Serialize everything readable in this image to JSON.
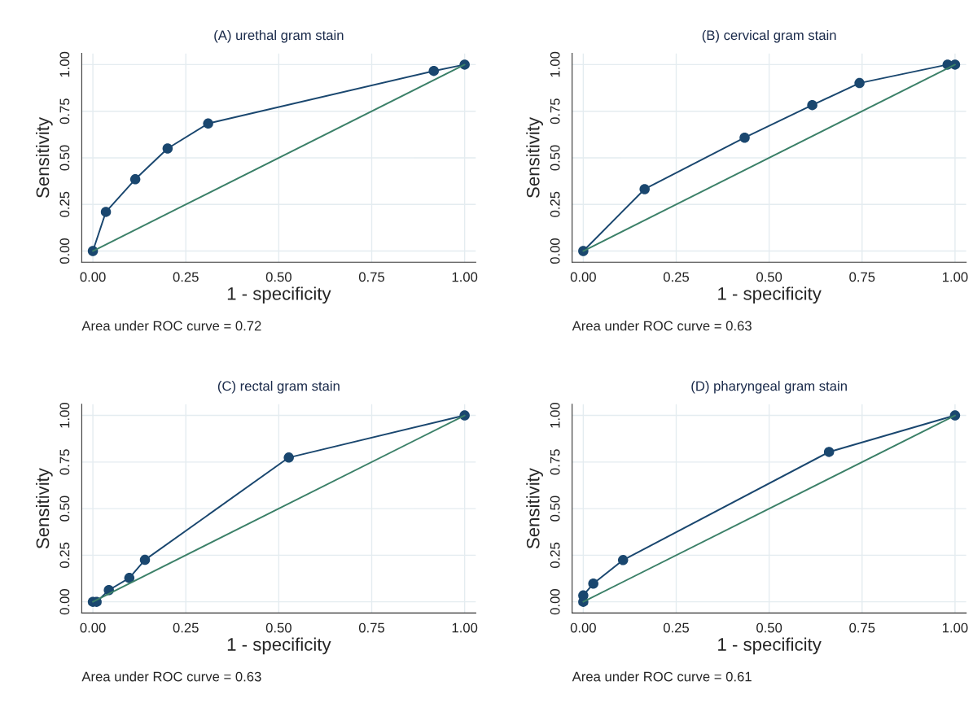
{
  "chart_data": [
    {
      "type": "line",
      "title": "(A) urethal gram stain",
      "xlabel": "1 - specificity",
      "ylabel": "Sensitivity",
      "annotations": [
        "Area under ROC curve = 0.72"
      ],
      "xlim": [
        -0.03,
        1.03
      ],
      "ylim": [
        -0.06,
        1.06
      ],
      "xticks": [
        {
          "value": 0,
          "label": "0.00"
        },
        {
          "value": 0.25,
          "label": "0.25"
        },
        {
          "value": 0.5,
          "label": "0.50"
        },
        {
          "value": 0.75,
          "label": "0.75"
        },
        {
          "value": 1,
          "label": "1.00"
        }
      ],
      "yticks": [
        {
          "value": 0,
          "label": "0.00"
        },
        {
          "value": 0.25,
          "label": "0.25"
        },
        {
          "value": 0.5,
          "label": "0.50"
        },
        {
          "value": 0.75,
          "label": "0.75"
        },
        {
          "value": 1,
          "label": "1.00"
        }
      ],
      "grid": true,
      "series": [
        {
          "color": "#1a476f",
          "marker": "circle",
          "x": [
            0,
            0.035,
            0.114,
            0.201,
            0.31,
            0.917,
            1
          ],
          "values": [
            0,
            0.21,
            0.385,
            0.55,
            0.684,
            0.966,
            1
          ]
        },
        {
          "color": "#3b8068",
          "marker": "none",
          "x": [
            0,
            1
          ],
          "values": [
            0,
            1
          ]
        }
      ]
    },
    {
      "type": "line",
      "title": "(B) cervical gram stain",
      "xlabel": "1 - specificity",
      "ylabel": "Sensitivity",
      "annotations": [
        "Area under ROC curve = 0.63"
      ],
      "xlim": [
        -0.03,
        1.03
      ],
      "ylim": [
        -0.06,
        1.06
      ],
      "xticks": [
        {
          "value": 0,
          "label": "0.00"
        },
        {
          "value": 0.25,
          "label": "0.25"
        },
        {
          "value": 0.5,
          "label": "0.50"
        },
        {
          "value": 0.75,
          "label": "0.75"
        },
        {
          "value": 1,
          "label": "1.00"
        }
      ],
      "yticks": [
        {
          "value": 0,
          "label": "0.00"
        },
        {
          "value": 0.25,
          "label": "0.25"
        },
        {
          "value": 0.5,
          "label": "0.50"
        },
        {
          "value": 0.75,
          "label": "0.75"
        },
        {
          "value": 1,
          "label": "1.00"
        }
      ],
      "grid": true,
      "series": [
        {
          "color": "#1a476f",
          "marker": "circle",
          "x": [
            0,
            0.165,
            0.434,
            0.616,
            0.743,
            0.98,
            1
          ],
          "values": [
            0,
            0.332,
            0.608,
            0.783,
            0.901,
            1,
            1
          ]
        },
        {
          "color": "#3b8068",
          "marker": "none",
          "x": [
            0,
            1
          ],
          "values": [
            0,
            1
          ]
        }
      ]
    },
    {
      "type": "line",
      "title": "(C) rectal gram stain",
      "xlabel": "1 - specificity",
      "ylabel": "Sensitivity",
      "annotations": [
        "Area under ROC curve = 0.63"
      ],
      "xlim": [
        -0.03,
        1.03
      ],
      "ylim": [
        -0.06,
        1.06
      ],
      "xticks": [
        {
          "value": 0,
          "label": "0.00"
        },
        {
          "value": 0.25,
          "label": "0.25"
        },
        {
          "value": 0.5,
          "label": "0.50"
        },
        {
          "value": 0.75,
          "label": "0.75"
        },
        {
          "value": 1,
          "label": "1.00"
        }
      ],
      "yticks": [
        {
          "value": 0,
          "label": "0.00"
        },
        {
          "value": 0.25,
          "label": "0.25"
        },
        {
          "value": 0.5,
          "label": "0.50"
        },
        {
          "value": 0.75,
          "label": "0.75"
        },
        {
          "value": 1,
          "label": "1.00"
        }
      ],
      "grid": true,
      "series": [
        {
          "color": "#1a476f",
          "marker": "circle",
          "x": [
            0,
            0.01,
            0.043,
            0.098,
            0.14,
            0.527,
            1
          ],
          "values": [
            0,
            0,
            0.063,
            0.128,
            0.225,
            0.774,
            1
          ]
        },
        {
          "color": "#3b8068",
          "marker": "none",
          "x": [
            0,
            1
          ],
          "values": [
            0,
            1
          ]
        }
      ]
    },
    {
      "type": "line",
      "title": "(D) pharyngeal gram stain",
      "xlabel": "1 - specificity",
      "ylabel": "Sensitivity",
      "annotations": [
        "Area under ROC curve = 0.61"
      ],
      "xlim": [
        -0.03,
        1.03
      ],
      "ylim": [
        -0.06,
        1.06
      ],
      "xticks": [
        {
          "value": 0,
          "label": "0.00"
        },
        {
          "value": 0.25,
          "label": "0.25"
        },
        {
          "value": 0.5,
          "label": "0.50"
        },
        {
          "value": 0.75,
          "label": "0.75"
        },
        {
          "value": 1,
          "label": "1.00"
        }
      ],
      "yticks": [
        {
          "value": 0,
          "label": "0.00"
        },
        {
          "value": 0.25,
          "label": "0.25"
        },
        {
          "value": 0.5,
          "label": "0.50"
        },
        {
          "value": 0.75,
          "label": "0.75"
        },
        {
          "value": 1,
          "label": "1.00"
        }
      ],
      "grid": true,
      "series": [
        {
          "color": "#1a476f",
          "marker": "circle",
          "x": [
            0,
            0,
            0.027,
            0.107,
            0.661,
            1
          ],
          "values": [
            0,
            0.034,
            0.098,
            0.224,
            0.804,
            1
          ]
        },
        {
          "color": "#3b8068",
          "marker": "none",
          "x": [
            0,
            1
          ],
          "values": [
            0,
            1
          ]
        }
      ]
    }
  ]
}
